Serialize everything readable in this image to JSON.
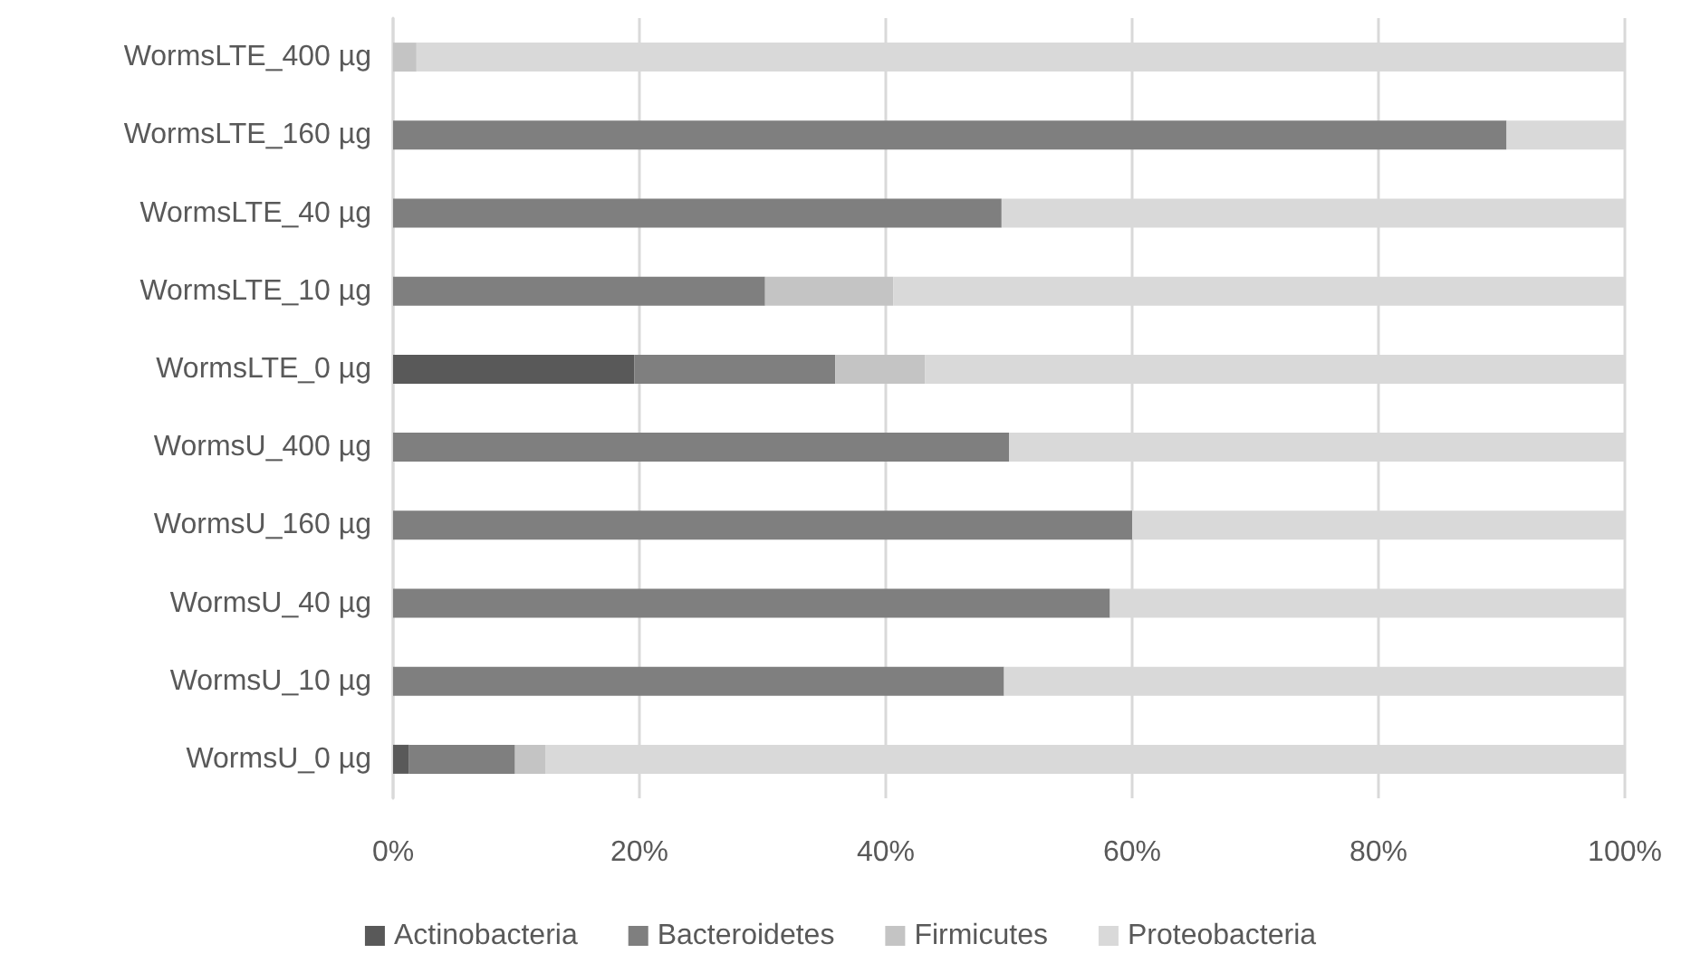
{
  "chart_data": {
    "type": "bar",
    "orientation": "horizontal",
    "stacked": true,
    "categories": [
      "WormsLTE_400 µg",
      "WormsLTE_160 µg",
      "WormsLTE_40 µg",
      "WormsLTE_10 µg",
      "WormsLTE_0 µg",
      "WormsU_400 µg",
      "WormsU_160 µg",
      "WormsU_40 µg",
      "WormsU_10 µg",
      "WormsU_0 µg"
    ],
    "series": [
      {
        "name": "Actinobacteria",
        "color": "#595959",
        "values": [
          0,
          0,
          0,
          0,
          19.6,
          0,
          0,
          0,
          0,
          1.3
        ]
      },
      {
        "name": "Bacteroidetes",
        "color": "#7f7f7f",
        "values": [
          0,
          90.4,
          49.4,
          30.2,
          16.3,
          50,
          60,
          58.2,
          49.6,
          8.6
        ]
      },
      {
        "name": "Firmicutes",
        "color": "#c4c4c4",
        "values": [
          1.9,
          0,
          0,
          10.4,
          7.3,
          0,
          0,
          0,
          0,
          2.5
        ]
      },
      {
        "name": "Proteobacteria",
        "color": "#d9d9d9",
        "values": [
          98.1,
          9.6,
          50.6,
          59.4,
          56.8,
          50,
          40,
          41.8,
          50.4,
          87.6
        ]
      }
    ],
    "xlim": [
      0,
      100
    ],
    "xticks": [
      {
        "value": 0,
        "label": "0%"
      },
      {
        "value": 20,
        "label": "20%"
      },
      {
        "value": 40,
        "label": "40%"
      },
      {
        "value": 60,
        "label": "60%"
      },
      {
        "value": 80,
        "label": "80%"
      },
      {
        "value": 100,
        "label": "100%"
      }
    ],
    "grid": "x",
    "legend": "bottom"
  }
}
